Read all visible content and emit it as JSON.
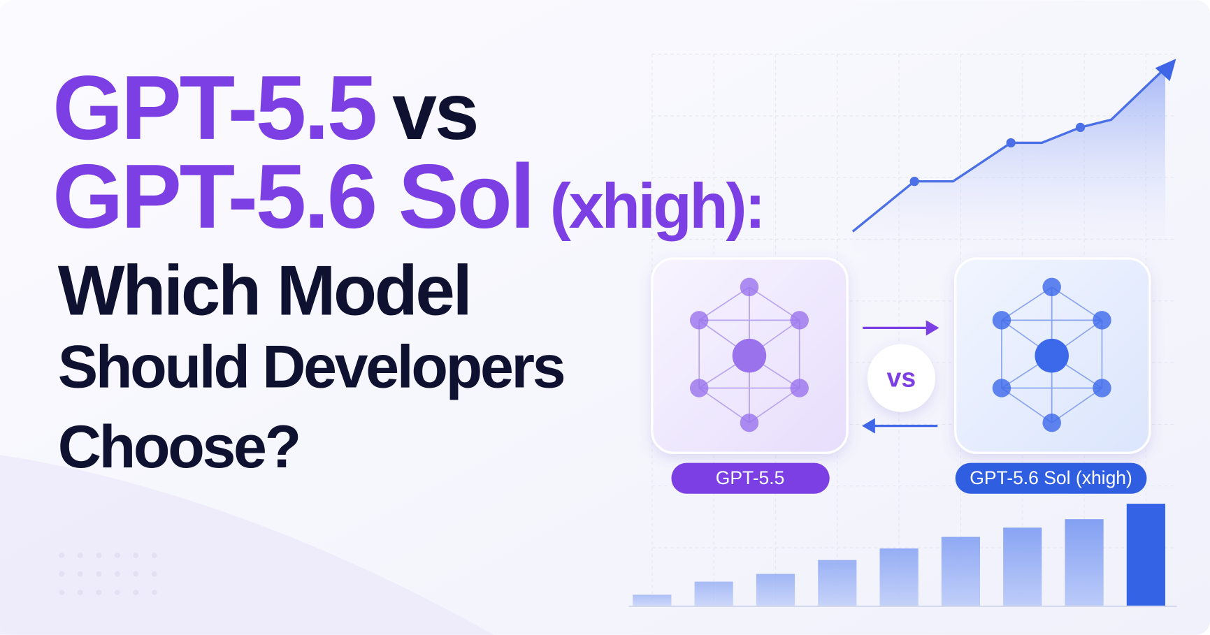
{
  "title": {
    "line1": {
      "highlight": "GPT-5.5",
      "rest": "vs"
    },
    "line2": {
      "highlight": "GPT-5.6 Sol",
      "suffix": "(xhigh):"
    },
    "lines": [
      "Which Model",
      "Should Developers",
      "Choose?"
    ]
  },
  "comparison": {
    "left_label": "GPT-5.5",
    "vs": "vs",
    "right_label": "GPT-5.6 Sol (xhigh)"
  }
}
